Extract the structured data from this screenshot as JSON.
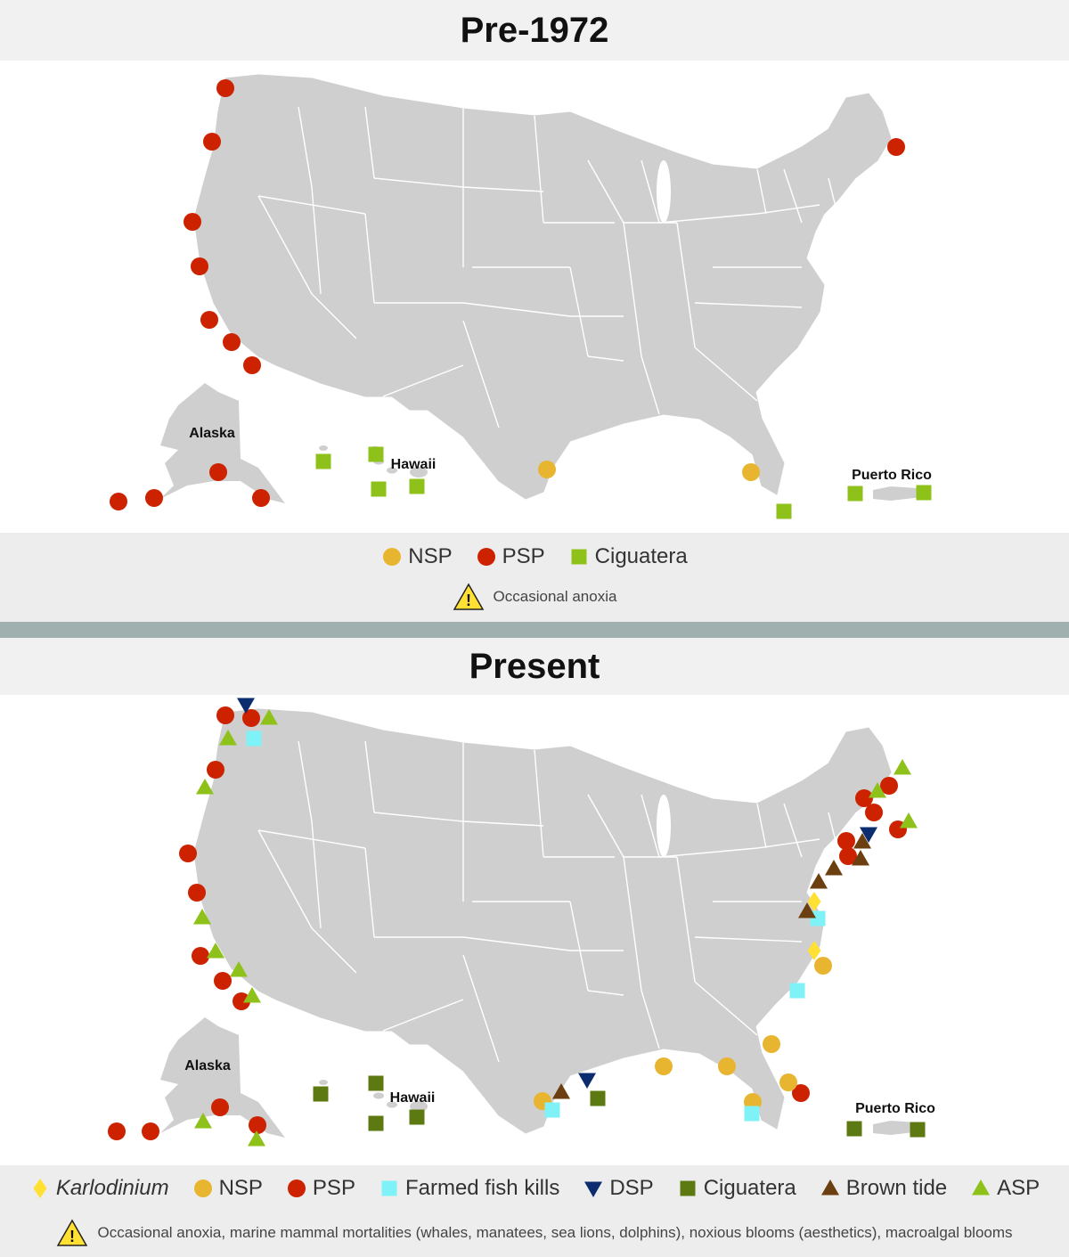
{
  "colors": {
    "land": "#cfcfcf",
    "state_border": "#ffffff",
    "NSP": "#e8b530",
    "PSP": "#cc2200",
    "Ciguatera_pre": "#8ec21a",
    "Ciguatera_present": "#5d7a12",
    "Karlodinium": "#ffe033",
    "Farmed": "#7ff2f7",
    "DSP": "#0b2c6e",
    "Brown": "#6b3f10",
    "ASP": "#8ec21a",
    "warning": "#ffe033"
  },
  "panels": [
    {
      "title": "Pre-1972",
      "labels": {
        "alaska": "Alaska",
        "hawaii": "Hawaii",
        "puerto_rico": "Puerto Rico"
      },
      "markers": [
        {
          "type": "PSP",
          "points": [
            [
              253,
              99
            ],
            [
              238,
              159
            ],
            [
              216,
              249
            ],
            [
              224,
              299
            ],
            [
              235,
              359
            ],
            [
              260,
              384
            ],
            [
              283,
              410
            ],
            [
              245,
              530
            ],
            [
              293,
              559
            ],
            [
              173,
              559
            ],
            [
              133,
              563
            ],
            [
              1006,
              165
            ]
          ]
        },
        {
          "type": "NSP",
          "points": [
            [
              614,
              527
            ],
            [
              843,
              530
            ]
          ]
        },
        {
          "type": "Ciguatera",
          "points": [
            [
              363,
              518
            ],
            [
              422,
              510
            ],
            [
              425,
              549
            ],
            [
              468,
              546
            ],
            [
              880,
              574
            ],
            [
              960,
              554
            ],
            [
              1037,
              553
            ]
          ]
        }
      ],
      "legend": [
        {
          "type": "NSP",
          "label": "NSP"
        },
        {
          "type": "PSP",
          "label": "PSP"
        },
        {
          "type": "Ciguatera",
          "label": "Ciguatera"
        }
      ],
      "note": "Occasional anoxia"
    },
    {
      "title": "Present",
      "labels": {
        "alaska": "Alaska",
        "hawaii": "Hawaii",
        "puerto_rico": "Puerto Rico"
      },
      "markers": [
        {
          "type": "PSP",
          "points": [
            [
              253,
              803
            ],
            [
              282,
              806
            ],
            [
              242,
              864
            ],
            [
              211,
              958
            ],
            [
              221,
              1002
            ],
            [
              225,
              1073
            ],
            [
              250,
              1101
            ],
            [
              271,
              1124
            ],
            [
              247,
              1243
            ],
            [
              289,
              1263
            ],
            [
              169,
              1270
            ],
            [
              131,
              1270
            ],
            [
              998,
              882
            ],
            [
              970,
              896
            ],
            [
              981,
              912
            ],
            [
              1008,
              931
            ],
            [
              950,
              944
            ],
            [
              952,
              961
            ],
            [
              899,
              1227
            ]
          ]
        },
        {
          "type": "NSP",
          "points": [
            [
              924,
              1084
            ],
            [
              866,
              1172
            ],
            [
              745,
              1197
            ],
            [
              816,
              1197
            ],
            [
              885,
              1215
            ],
            [
              609,
              1236
            ],
            [
              845,
              1237
            ]
          ]
        },
        {
          "type": "ASP",
          "points": [
            [
              302,
              806
            ],
            [
              256,
              829
            ],
            [
              230,
              884
            ],
            [
              227,
              1030
            ],
            [
              242,
              1068
            ],
            [
              268,
              1089
            ],
            [
              283,
              1118
            ],
            [
              228,
              1259
            ],
            [
              288,
              1279
            ],
            [
              1013,
              862
            ],
            [
              985,
              888
            ],
            [
              1020,
              922
            ]
          ]
        },
        {
          "type": "Farmed",
          "points": [
            [
              285,
              829
            ],
            [
              918,
              1031
            ],
            [
              895,
              1112
            ],
            [
              620,
              1246
            ],
            [
              844,
              1250
            ]
          ]
        },
        {
          "type": "DSP",
          "points": [
            [
              276,
              791
            ],
            [
              975,
              936
            ],
            [
              659,
              1212
            ]
          ]
        },
        {
          "type": "Brown",
          "points": [
            [
              968,
              945
            ],
            [
              966,
              964
            ],
            [
              936,
              975
            ],
            [
              919,
              990
            ],
            [
              906,
              1023
            ],
            [
              630,
              1226
            ]
          ]
        },
        {
          "type": "Karlodinium",
          "points": [
            [
              914,
              1012
            ],
            [
              914,
              1067
            ]
          ]
        },
        {
          "type": "Ciguatera",
          "points": [
            [
              360,
              1228
            ],
            [
              422,
              1216
            ],
            [
              422,
              1261
            ],
            [
              468,
              1254
            ],
            [
              671,
              1233
            ],
            [
              959,
              1267
            ],
            [
              1030,
              1268
            ]
          ]
        }
      ],
      "legend": [
        {
          "type": "Karlodinium",
          "label": "Karlodinium"
        },
        {
          "type": "NSP",
          "label": "NSP"
        },
        {
          "type": "PSP",
          "label": "PSP"
        },
        {
          "type": "Farmed",
          "label": "Farmed fish kills"
        },
        {
          "type": "DSP",
          "label": "DSP"
        },
        {
          "type": "Ciguatera",
          "label": "Ciguatera"
        },
        {
          "type": "Brown",
          "label": "Brown tide"
        },
        {
          "type": "ASP",
          "label": "ASP"
        }
      ],
      "note": "Occasional anoxia, marine mammal mortalities (whales, manatees, sea lions, dolphins), noxious blooms (aesthetics), macroalgal blooms"
    }
  ]
}
